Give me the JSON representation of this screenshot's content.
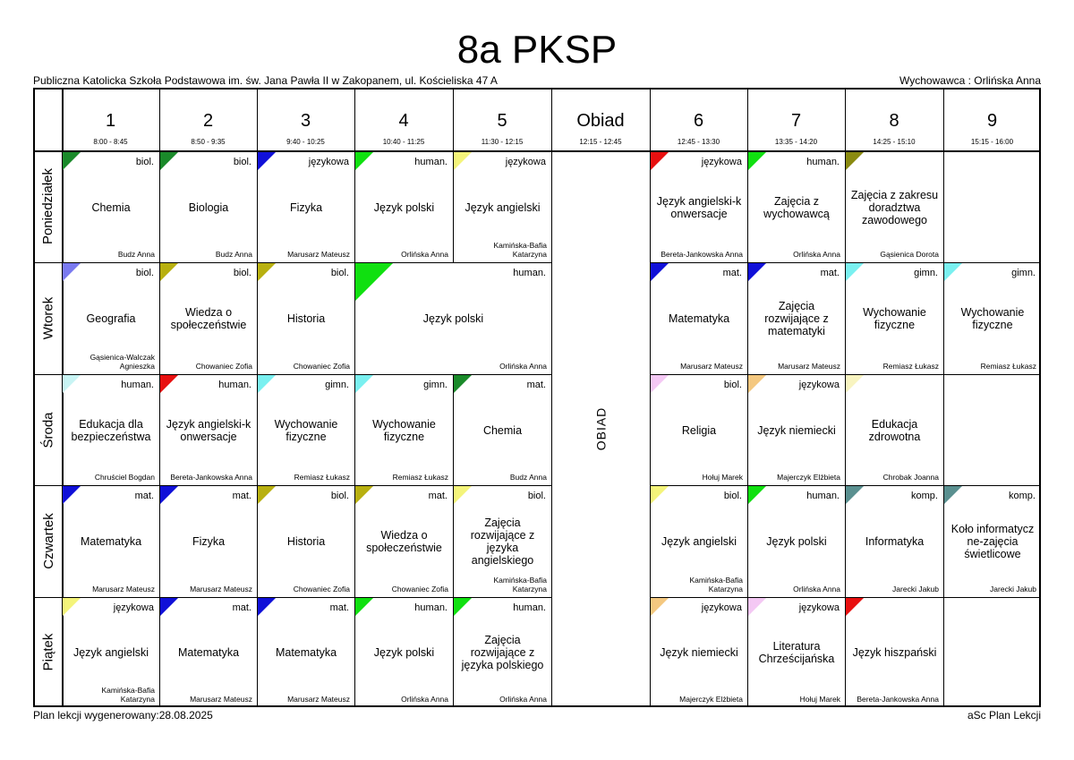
{
  "title": "8a PKSP",
  "school": "Publiczna Katolicka Szkoła Podstawowa im. św. Jana Pawła II w Zakopanem, ul. Kościeliska 47 A",
  "homeroom": "Wychowawca : Orlińska Anna",
  "footer": {
    "generated": "Plan lekcji wygenerowany:28.08.2025",
    "software": "aSc Plan Lekcji"
  },
  "columns": [
    {
      "label": "1",
      "time": "8:00 - 8:45"
    },
    {
      "label": "2",
      "time": "8:50 - 9:35"
    },
    {
      "label": "3",
      "time": "9:40 - 10:25"
    },
    {
      "label": "4",
      "time": "10:40 - 11:25"
    },
    {
      "label": "5",
      "time": "11:30 - 12:15"
    },
    {
      "label": "Obiad",
      "time": "12:15 - 12:45"
    },
    {
      "label": "6",
      "time": "12:45 - 13:30"
    },
    {
      "label": "7",
      "time": "13:35 - 14:20"
    },
    {
      "label": "8",
      "time": "14:25 - 15:10"
    },
    {
      "label": "9",
      "time": "15:15 - 16:00"
    }
  ],
  "days": [
    "Poniedziałek",
    "Wtorek",
    "Środa",
    "Czwartek",
    "Piątek"
  ],
  "lunch_label": "OBIAD",
  "lessons": [
    {
      "day": 0,
      "col": 0,
      "span": 1,
      "group": "biol.",
      "subject": "Chemia",
      "teacher": "Budz Anna",
      "color": "#1a8a2a"
    },
    {
      "day": 0,
      "col": 1,
      "span": 1,
      "group": "biol.",
      "subject": "Biologia",
      "teacher": "Budz Anna",
      "color": "#1a8a2a"
    },
    {
      "day": 0,
      "col": 2,
      "span": 1,
      "group": "językowa",
      "subject": "Fizyka",
      "teacher": "Marusarz Mateusz",
      "color": "#1010d8"
    },
    {
      "day": 0,
      "col": 3,
      "span": 1,
      "group": "human.",
      "subject": "Język polski",
      "teacher": "Orlińska Anna",
      "color": "#10e010"
    },
    {
      "day": 0,
      "col": 4,
      "span": 1,
      "group": "językowa",
      "subject": "Język angielski",
      "teacher": "Kamińska-Bafia Katarzyna",
      "color": "#f4f47a"
    },
    {
      "day": 0,
      "col": 6,
      "span": 1,
      "group": "językowa",
      "subject": "Język angielski-k onwersacje",
      "teacher": "Bereta-Jankowska Anna",
      "color": "#e81010"
    },
    {
      "day": 0,
      "col": 7,
      "span": 1,
      "group": "human.",
      "subject": "Zajęcia z wychowawcą",
      "teacher": "Orlińska Anna",
      "color": "#10e010"
    },
    {
      "day": 0,
      "col": 8,
      "span": 1,
      "group": "",
      "subject": "Zajęcia z zakresu doradztwa zawodowego",
      "teacher": "Gąsienica Dorota",
      "color": "#8a8a10"
    },
    {
      "day": 1,
      "col": 0,
      "span": 1,
      "group": "biol.",
      "subject": "Geografia",
      "teacher": "Gąsienica-Walczak Agnieszka",
      "color": "#7a7af0"
    },
    {
      "day": 1,
      "col": 1,
      "span": 1,
      "group": "biol.",
      "subject": "Wiedza o społeczeństwie",
      "teacher": "Chowaniec Zofia",
      "color": "#b8b010"
    },
    {
      "day": 1,
      "col": 2,
      "span": 1,
      "group": "biol.",
      "subject": "Historia",
      "teacher": "Chowaniec Zofia",
      "color": "#b8b010"
    },
    {
      "day": 1,
      "col": 3,
      "span": 2,
      "group": "human.",
      "subject": "Język polski",
      "teacher": "Orlińska Anna",
      "color": "#10e010"
    },
    {
      "day": 1,
      "col": 6,
      "span": 1,
      "group": "mat.",
      "subject": "Matematyka",
      "teacher": "Marusarz Mateusz",
      "color": "#1010d8"
    },
    {
      "day": 1,
      "col": 7,
      "span": 1,
      "group": "mat.",
      "subject": "Zajęcia rozwijające z matematyki",
      "teacher": "Marusarz Mateusz",
      "color": "#1010d8"
    },
    {
      "day": 1,
      "col": 8,
      "span": 1,
      "group": "gimn.",
      "subject": "Wychowanie fizyczne",
      "teacher": "Remiasz Łukasz",
      "color": "#7af0f0"
    },
    {
      "day": 1,
      "col": 9,
      "span": 1,
      "group": "gimn.",
      "subject": "Wychowanie fizyczne",
      "teacher": "Remiasz Łukasz",
      "color": "#7af0f0"
    },
    {
      "day": 2,
      "col": 0,
      "span": 1,
      "group": "human.",
      "subject": "Edukacja dla bezpieczeństwa",
      "teacher": "Chruściel Bogdan",
      "color": "#c8f4f4"
    },
    {
      "day": 2,
      "col": 1,
      "span": 1,
      "group": "human.",
      "subject": "Język angielski-k onwersacje",
      "teacher": "Bereta-Jankowska Anna",
      "color": "#e81010"
    },
    {
      "day": 2,
      "col": 2,
      "span": 1,
      "group": "gimn.",
      "subject": "Wychowanie fizyczne",
      "teacher": "Remiasz Łukasz",
      "color": "#7af0f0"
    },
    {
      "day": 2,
      "col": 3,
      "span": 1,
      "group": "gimn.",
      "subject": "Wychowanie fizyczne",
      "teacher": "Remiasz Łukasz",
      "color": "#7af0f0"
    },
    {
      "day": 2,
      "col": 4,
      "span": 1,
      "group": "mat.",
      "subject": "Chemia",
      "teacher": "Budz Anna",
      "color": "#1a8a2a"
    },
    {
      "day": 2,
      "col": 6,
      "span": 1,
      "group": "biol.",
      "subject": "Religia",
      "teacher": "Hołuj Marek",
      "color": "#f4c8f4"
    },
    {
      "day": 2,
      "col": 7,
      "span": 1,
      "group": "językowa",
      "subject": "Język niemiecki",
      "teacher": "Majerczyk Elżbieta",
      "color": "#f4c880"
    },
    {
      "day": 2,
      "col": 8,
      "span": 1,
      "group": "",
      "subject": "Edukacja zdrowotna",
      "teacher": "Chrobak Joanna",
      "color": "#f8f4c0"
    },
    {
      "day": 3,
      "col": 0,
      "span": 1,
      "group": "mat.",
      "subject": "Matematyka",
      "teacher": "Marusarz Mateusz",
      "color": "#1010d8"
    },
    {
      "day": 3,
      "col": 1,
      "span": 1,
      "group": "mat.",
      "subject": "Fizyka",
      "teacher": "Marusarz Mateusz",
      "color": "#1010d8"
    },
    {
      "day": 3,
      "col": 2,
      "span": 1,
      "group": "biol.",
      "subject": "Historia",
      "teacher": "Chowaniec Zofia",
      "color": "#b8b010"
    },
    {
      "day": 3,
      "col": 3,
      "span": 1,
      "group": "mat.",
      "subject": "Wiedza o społeczeństwie",
      "teacher": "Chowaniec Zofia",
      "color": "#b8b010"
    },
    {
      "day": 3,
      "col": 4,
      "span": 1,
      "group": "biol.",
      "subject": "Zajęcia rozwijające z języka angielskiego",
      "teacher": "Kamińska-Bafia Katarzyna",
      "color": "#f4f47a"
    },
    {
      "day": 3,
      "col": 6,
      "span": 1,
      "group": "biol.",
      "subject": "Język angielski",
      "teacher": "Kamińska-Bafia Katarzyna",
      "color": "#f4f47a"
    },
    {
      "day": 3,
      "col": 7,
      "span": 1,
      "group": "human.",
      "subject": "Język polski",
      "teacher": "Orlińska Anna",
      "color": "#10e010"
    },
    {
      "day": 3,
      "col": 8,
      "span": 1,
      "group": "komp.",
      "subject": "Informatyka",
      "teacher": "Jarecki Jakub",
      "color": "#5a9090"
    },
    {
      "day": 3,
      "col": 9,
      "span": 1,
      "group": "komp.",
      "subject": "Koło informatycz ne-zajęcia świetlicowe",
      "teacher": "Jarecki Jakub",
      "color": "#5a9090"
    },
    {
      "day": 4,
      "col": 0,
      "span": 1,
      "group": "językowa",
      "subject": "Język angielski",
      "teacher": "Kamińska-Bafia Katarzyna",
      "color": "#f4f47a"
    },
    {
      "day": 4,
      "col": 1,
      "span": 1,
      "group": "mat.",
      "subject": "Matematyka",
      "teacher": "Marusarz Mateusz",
      "color": "#1010d8"
    },
    {
      "day": 4,
      "col": 2,
      "span": 1,
      "group": "mat.",
      "subject": "Matematyka",
      "teacher": "Marusarz Mateusz",
      "color": "#1010d8"
    },
    {
      "day": 4,
      "col": 3,
      "span": 1,
      "group": "human.",
      "subject": "Język polski",
      "teacher": "Orlińska Anna",
      "color": "#10e010"
    },
    {
      "day": 4,
      "col": 4,
      "span": 1,
      "group": "human.",
      "subject": "Zajęcia rozwijające z języka polskiego",
      "teacher": "Orlińska Anna",
      "color": "#10e010"
    },
    {
      "day": 4,
      "col": 6,
      "span": 1,
      "group": "językowa",
      "subject": "Język niemiecki",
      "teacher": "Majerczyk Elżbieta",
      "color": "#f4c880"
    },
    {
      "day": 4,
      "col": 7,
      "span": 1,
      "group": "językowa",
      "subject": "Literatura Chrześcijańska",
      "teacher": "Hołuj Marek",
      "color": "#f4c8f4"
    },
    {
      "day": 4,
      "col": 8,
      "span": 1,
      "group": "",
      "subject": "Język hiszpański",
      "teacher": "Bereta-Jankowska Anna",
      "color": "#e81010"
    }
  ]
}
